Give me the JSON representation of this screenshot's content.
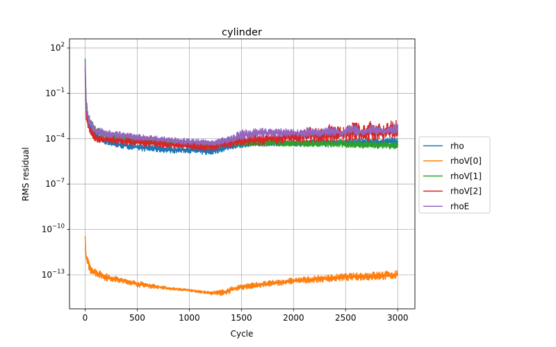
{
  "chart_data": {
    "type": "line",
    "title": "cylinder",
    "xlabel": "Cycle",
    "ylabel": "RMS residual",
    "yscale": "log",
    "xlim": [
      -150,
      3165
    ],
    "ylim_log10": [
      -15.25,
      2.6
    ],
    "grid": true,
    "legend_placement": "center-right outside",
    "x_ticks": [
      0,
      500,
      1000,
      1500,
      2000,
      2500,
      3000
    ],
    "y_ticks": [
      {
        "base": "10",
        "exp": "2",
        "value": 2
      },
      {
        "base": "10",
        "exp": "−1",
        "value": -1
      },
      {
        "base": "10",
        "exp": "−4",
        "value": -4
      },
      {
        "base": "10",
        "exp": "−7",
        "value": -7
      },
      {
        "base": "10",
        "exp": "−10",
        "value": -10
      },
      {
        "base": "10",
        "exp": "−13",
        "value": -13
      }
    ],
    "series": [
      {
        "name": "rho",
        "color": "#1f77b4",
        "x": [
          0,
          10,
          30,
          100,
          200,
          300,
          500,
          800,
          1000,
          1200,
          1400,
          1600,
          2000,
          2500,
          3000
        ],
        "lower": [
          0.5,
          -2.3,
          -3.2,
          -4.1,
          -4.4,
          -4.6,
          -4.8,
          -4.95,
          -4.95,
          -5.1,
          -4.7,
          -4.5,
          -4.5,
          -4.5,
          -4.5
        ],
        "upper": [
          1.0,
          -1.5,
          -2.5,
          -3.5,
          -3.9,
          -4.1,
          -4.3,
          -4.5,
          -4.55,
          -4.6,
          -4.3,
          -4.1,
          -4.1,
          -4.0,
          -3.9
        ]
      },
      {
        "name": "rhoV[0]",
        "color": "#ff7f0e",
        "x": [
          0,
          10,
          50,
          100,
          200,
          400,
          500,
          800,
          1000,
          1200,
          1300,
          1500,
          2000,
          2500,
          3000
        ],
        "lower": [
          -11.0,
          -12.2,
          -12.9,
          -13.1,
          -13.4,
          -13.6,
          -13.8,
          -14.0,
          -14.1,
          -14.3,
          -14.4,
          -14.0,
          -13.6,
          -13.4,
          -13.3
        ],
        "upper": [
          -10.3,
          -11.6,
          -12.3,
          -12.6,
          -12.9,
          -13.3,
          -13.4,
          -13.8,
          -13.95,
          -14.1,
          -14.0,
          -13.6,
          -13.2,
          -12.9,
          -12.7
        ]
      },
      {
        "name": "rhoV[1]",
        "color": "#2ca02c",
        "x": [
          0,
          10,
          30,
          100,
          200,
          500,
          1000,
          1500,
          2000,
          2500,
          3000
        ],
        "lower": [
          0.8,
          -2.0,
          -2.9,
          -3.8,
          -4.0,
          -4.3,
          -4.6,
          -4.5,
          -4.5,
          -4.6,
          -4.7
        ],
        "upper": [
          1.6,
          -1.2,
          -2.3,
          -3.2,
          -3.5,
          -3.8,
          -4.2,
          -4.0,
          -4.1,
          -4.1,
          -4.2
        ]
      },
      {
        "name": "rhoV[2]",
        "color": "#d62728",
        "x": [
          0,
          10,
          30,
          100,
          200,
          500,
          1000,
          1200,
          1500,
          2000,
          2500,
          3000
        ],
        "lower": [
          0.2,
          -2.7,
          -3.4,
          -4.3,
          -4.3,
          -4.5,
          -4.7,
          -4.8,
          -4.5,
          -4.3,
          -4.2,
          -4.1
        ],
        "upper": [
          0.6,
          -2.2,
          -3.0,
          -3.7,
          -3.8,
          -4.0,
          -4.2,
          -4.3,
          -3.8,
          -3.4,
          -2.9,
          -2.7
        ]
      },
      {
        "name": "rhoE",
        "color": "#9467bd",
        "x": [
          0,
          10,
          30,
          100,
          200,
          500,
          1000,
          1200,
          1400,
          1500,
          1700,
          2000,
          2500,
          3000
        ],
        "lower": [
          0.6,
          -2.3,
          -3.0,
          -3.8,
          -3.9,
          -4.1,
          -4.4,
          -4.5,
          -4.3,
          -4.1,
          -3.9,
          -3.9,
          -3.8,
          -3.7
        ],
        "upper": [
          1.1,
          -1.6,
          -2.4,
          -3.2,
          -3.4,
          -3.7,
          -4.0,
          -4.1,
          -3.8,
          -3.4,
          -3.3,
          -3.3,
          -3.1,
          -3.0
        ]
      }
    ]
  }
}
